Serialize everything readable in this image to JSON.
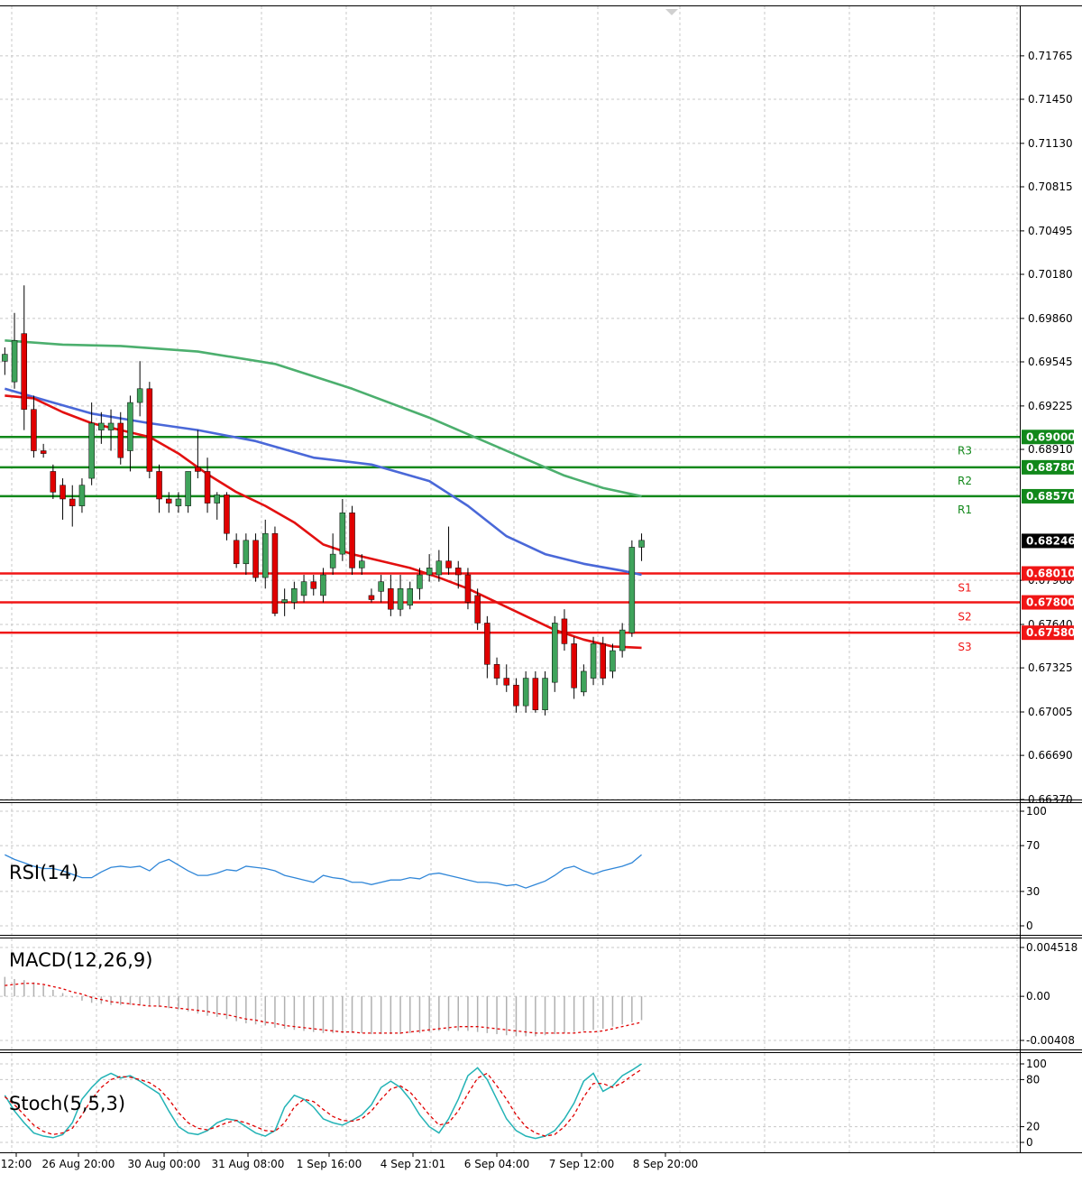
{
  "colors": {
    "bull": "#3fa35b",
    "bear": "#e00000",
    "grid": "#c8c8c8",
    "resistance": "#11881a",
    "support": "#f01515",
    "ma_slow": "#4caf6e",
    "ma_mid": "#4a68d8",
    "ma_fast": "#e31010",
    "rsi": "#2f86d8",
    "macd_hist": "#b0b0b0",
    "macd_signal": "#e00000",
    "stoch_main": "#23b3b6",
    "stoch_signal": "#e00000",
    "price_tag_bg": "#000000"
  },
  "chart_data": {
    "type": "candlestick",
    "price_axis": {
      "ticks": [
        "0.71765",
        "0.71450",
        "0.71130",
        "0.70815",
        "0.70495",
        "0.70180",
        "0.69860",
        "0.69545",
        "0.69225",
        "0.68910",
        "0.67960",
        "0.67640",
        "0.67325",
        "0.67005",
        "0.66690",
        "0.66370"
      ],
      "ylim": [
        0.6637,
        0.72085
      ]
    },
    "time_axis": {
      "labels": [
        "12:00",
        "26 Aug 20:00",
        "30 Aug 00:00",
        "31 Aug 08:00",
        "1 Sep 16:00",
        "4 Sep 21:01",
        "6 Sep 04:00",
        "7 Sep 12:00",
        "8 Sep 20:00"
      ]
    },
    "current_price": "0.68246",
    "levels": [
      {
        "name": "R3",
        "value": 0.69,
        "label": "0.69000",
        "kind": "resistance"
      },
      {
        "name": "R2",
        "value": 0.6878,
        "label": "0.68780",
        "kind": "resistance"
      },
      {
        "name": "R1",
        "value": 0.6857,
        "label": "0.68570",
        "kind": "resistance"
      },
      {
        "name": "S1",
        "value": 0.6801,
        "label": "0.68010",
        "kind": "support"
      },
      {
        "name": "S2",
        "value": 0.678,
        "label": "0.67800",
        "kind": "support"
      },
      {
        "name": "S3",
        "value": 0.6758,
        "label": "0.67580",
        "kind": "support"
      }
    ],
    "candles": [
      [
        0.6955,
        0.6965,
        0.6945,
        0.696
      ],
      [
        0.694,
        0.699,
        0.6935,
        0.697
      ],
      [
        0.6975,
        0.701,
        0.6905,
        0.692
      ],
      [
        0.692,
        0.693,
        0.6885,
        0.689
      ],
      [
        0.689,
        0.6895,
        0.6885,
        0.6888
      ],
      [
        0.6875,
        0.688,
        0.6855,
        0.686
      ],
      [
        0.6865,
        0.687,
        0.684,
        0.6855
      ],
      [
        0.6855,
        0.6865,
        0.6835,
        0.685
      ],
      [
        0.685,
        0.687,
        0.6845,
        0.6865
      ],
      [
        0.687,
        0.6925,
        0.6865,
        0.691
      ],
      [
        0.6905,
        0.6918,
        0.6895,
        0.691
      ],
      [
        0.6905,
        0.692,
        0.689,
        0.691
      ],
      [
        0.691,
        0.6918,
        0.688,
        0.6885
      ],
      [
        0.689,
        0.693,
        0.6875,
        0.6925
      ],
      [
        0.6925,
        0.6955,
        0.6915,
        0.6935
      ],
      [
        0.6935,
        0.694,
        0.687,
        0.6875
      ],
      [
        0.6875,
        0.688,
        0.6845,
        0.6855
      ],
      [
        0.6855,
        0.686,
        0.6845,
        0.6852
      ],
      [
        0.685,
        0.686,
        0.6845,
        0.6855
      ],
      [
        0.685,
        0.6875,
        0.6845,
        0.6875
      ],
      [
        0.6878,
        0.6905,
        0.687,
        0.6875
      ],
      [
        0.6875,
        0.6885,
        0.6845,
        0.6852
      ],
      [
        0.6852,
        0.686,
        0.684,
        0.6858
      ],
      [
        0.6858,
        0.686,
        0.6825,
        0.683
      ],
      [
        0.6825,
        0.683,
        0.6805,
        0.6808
      ],
      [
        0.6808,
        0.683,
        0.68,
        0.6825
      ],
      [
        0.6825,
        0.683,
        0.6795,
        0.6798
      ],
      [
        0.6798,
        0.684,
        0.679,
        0.683
      ],
      [
        0.683,
        0.6835,
        0.677,
        0.6772
      ],
      [
        0.678,
        0.679,
        0.677,
        0.6782
      ],
      [
        0.678,
        0.6795,
        0.6775,
        0.679
      ],
      [
        0.6785,
        0.68,
        0.678,
        0.6795
      ],
      [
        0.6795,
        0.68,
        0.6785,
        0.679
      ],
      [
        0.6785,
        0.6805,
        0.678,
        0.68
      ],
      [
        0.6805,
        0.683,
        0.68,
        0.6815
      ],
      [
        0.6815,
        0.6855,
        0.681,
        0.6845
      ],
      [
        0.6845,
        0.685,
        0.68,
        0.6805
      ],
      [
        0.6805,
        0.6815,
        0.68,
        0.681
      ],
      [
        0.6785,
        0.679,
        0.678,
        0.6782
      ],
      [
        0.6788,
        0.68,
        0.678,
        0.6795
      ],
      [
        0.679,
        0.68,
        0.677,
        0.6775
      ],
      [
        0.6775,
        0.68,
        0.677,
        0.679
      ],
      [
        0.6778,
        0.6795,
        0.6775,
        0.679
      ],
      [
        0.679,
        0.6805,
        0.6782,
        0.68
      ],
      [
        0.68,
        0.6815,
        0.6795,
        0.6805
      ],
      [
        0.68,
        0.6818,
        0.6795,
        0.681
      ],
      [
        0.681,
        0.6835,
        0.68,
        0.6805
      ],
      [
        0.6805,
        0.681,
        0.679,
        0.68
      ],
      [
        0.68,
        0.6805,
        0.6775,
        0.678
      ],
      [
        0.6785,
        0.679,
        0.676,
        0.6765
      ],
      [
        0.6765,
        0.677,
        0.6725,
        0.6735
      ],
      [
        0.6735,
        0.674,
        0.672,
        0.6725
      ],
      [
        0.6725,
        0.6735,
        0.6715,
        0.672
      ],
      [
        0.672,
        0.6725,
        0.67,
        0.6705
      ],
      [
        0.6705,
        0.673,
        0.67,
        0.6725
      ],
      [
        0.6725,
        0.673,
        0.67,
        0.6702
      ],
      [
        0.6702,
        0.673,
        0.6698,
        0.6725
      ],
      [
        0.6722,
        0.677,
        0.6715,
        0.6765
      ],
      [
        0.6768,
        0.6775,
        0.6745,
        0.675
      ],
      [
        0.675,
        0.6755,
        0.671,
        0.6718
      ],
      [
        0.6715,
        0.6735,
        0.6712,
        0.673
      ],
      [
        0.6725,
        0.6755,
        0.672,
        0.675
      ],
      [
        0.675,
        0.6755,
        0.672,
        0.6725
      ],
      [
        0.673,
        0.675,
        0.6725,
        0.6745
      ],
      [
        0.6745,
        0.6765,
        0.674,
        0.676
      ],
      [
        0.6758,
        0.6825,
        0.6755,
        0.682
      ],
      [
        0.682,
        0.683,
        0.681,
        0.6825
      ]
    ],
    "moving_averages": [
      {
        "key": "ma_slow",
        "values": [
          [
            0,
            0.697
          ],
          [
            6,
            0.6967
          ],
          [
            12,
            0.6966
          ],
          [
            20,
            0.6962
          ],
          [
            28,
            0.6953
          ],
          [
            36,
            0.6935
          ],
          [
            44,
            0.6914
          ],
          [
            52,
            0.689
          ],
          [
            58,
            0.6872
          ],
          [
            62,
            0.6863
          ],
          [
            66,
            0.6857
          ]
        ]
      },
      {
        "key": "ma_mid",
        "values": [
          [
            0,
            0.6935
          ],
          [
            5,
            0.6925
          ],
          [
            9,
            0.6917
          ],
          [
            15,
            0.691
          ],
          [
            20,
            0.6905
          ],
          [
            26,
            0.6897
          ],
          [
            32,
            0.6885
          ],
          [
            38,
            0.688
          ],
          [
            44,
            0.6868
          ],
          [
            48,
            0.685
          ],
          [
            52,
            0.6828
          ],
          [
            56,
            0.6815
          ],
          [
            60,
            0.6808
          ],
          [
            64,
            0.6803
          ],
          [
            66,
            0.68
          ]
        ]
      },
      {
        "key": "ma_fast",
        "values": [
          [
            0,
            0.693
          ],
          [
            3,
            0.6928
          ],
          [
            6,
            0.6918
          ],
          [
            9,
            0.691
          ],
          [
            12,
            0.6905
          ],
          [
            15,
            0.69
          ],
          [
            18,
            0.6888
          ],
          [
            21,
            0.6873
          ],
          [
            24,
            0.686
          ],
          [
            27,
            0.685
          ],
          [
            30,
            0.6838
          ],
          [
            33,
            0.6822
          ],
          [
            36,
            0.6815
          ],
          [
            39,
            0.681
          ],
          [
            42,
            0.6805
          ],
          [
            45,
            0.6798
          ],
          [
            48,
            0.679
          ],
          [
            51,
            0.678
          ],
          [
            54,
            0.677
          ],
          [
            57,
            0.676
          ],
          [
            60,
            0.6753
          ],
          [
            63,
            0.6748
          ],
          [
            66,
            0.6747
          ]
        ]
      }
    ],
    "rsi": {
      "title": "RSI(14)",
      "ticks": [
        "100",
        "70",
        "30",
        "0"
      ],
      "tick_values": [
        100,
        70,
        30,
        0
      ],
      "values": [
        62,
        58,
        55,
        52,
        50,
        50,
        48,
        45,
        42,
        42,
        47,
        51,
        52,
        51,
        52,
        48,
        55,
        58,
        53,
        48,
        44,
        44,
        46,
        49,
        48,
        52,
        51,
        50,
        48,
        44,
        42,
        40,
        38,
        44,
        42,
        41,
        38,
        38,
        36,
        38,
        40,
        40,
        42,
        41,
        45,
        46,
        44,
        42,
        40,
        38,
        38,
        37,
        35,
        36,
        33,
        36,
        39,
        44,
        50,
        52,
        48,
        45,
        48,
        50,
        52,
        55,
        62
      ]
    },
    "macd": {
      "title": "MACD(12,26,9)",
      "ticks": [
        "0.004518",
        "0.00",
        "-0.00408"
      ],
      "tick_values": [
        0.004518,
        0.0,
        -0.00408
      ],
      "hist": [
        0.0018,
        0.0016,
        0.0015,
        0.0013,
        0.001,
        0.0006,
        0.0003,
        -0.0001,
        -0.0004,
        -0.0006,
        -0.0007,
        -0.0008,
        -0.0008,
        -0.0008,
        -0.0008,
        -0.0009,
        -0.001,
        -0.0011,
        -0.0012,
        -0.0014,
        -0.0016,
        -0.0018,
        -0.0019,
        -0.0021,
        -0.0023,
        -0.0025,
        -0.0026,
        -0.0027,
        -0.0029,
        -0.003,
        -0.0031,
        -0.0032,
        -0.0033,
        -0.0034,
        -0.0034,
        -0.0034,
        -0.0034,
        -0.0034,
        -0.0035,
        -0.0035,
        -0.0035,
        -0.0035,
        -0.0034,
        -0.0034,
        -0.0033,
        -0.0032,
        -0.0032,
        -0.0032,
        -0.0032,
        -0.0033,
        -0.0034,
        -0.0035,
        -0.0036,
        -0.0037,
        -0.0037,
        -0.0037,
        -0.0036,
        -0.0035,
        -0.0034,
        -0.0033,
        -0.0032,
        -0.0031,
        -0.003,
        -0.0028,
        -0.0026,
        -0.0024,
        -0.0022
      ],
      "signal": [
        0.001,
        0.0011,
        0.0012,
        0.0012,
        0.0011,
        0.0009,
        0.0007,
        0.0004,
        0.0002,
        -0.0001,
        -0.0003,
        -0.0005,
        -0.0006,
        -0.0007,
        -0.0008,
        -0.0009,
        -0.0009,
        -0.001,
        -0.0011,
        -0.0012,
        -0.0013,
        -0.0014,
        -0.0016,
        -0.0017,
        -0.0019,
        -0.0021,
        -0.0022,
        -0.0024,
        -0.0025,
        -0.0027,
        -0.0028,
        -0.0029,
        -0.003,
        -0.0031,
        -0.0032,
        -0.0033,
        -0.0033,
        -0.0034,
        -0.0034,
        -0.0034,
        -0.0034,
        -0.0034,
        -0.0033,
        -0.0032,
        -0.0031,
        -0.003,
        -0.0029,
        -0.0028,
        -0.0028,
        -0.0028,
        -0.0029,
        -0.003,
        -0.0031,
        -0.0032,
        -0.0033,
        -0.0034,
        -0.0034,
        -0.0034,
        -0.0034,
        -0.0034,
        -0.0033,
        -0.0033,
        -0.0032,
        -0.003,
        -0.0028,
        -0.0026,
        -0.0024
      ]
    },
    "stoch": {
      "title": "Stoch(5,5,3)",
      "ticks": [
        "100",
        "80",
        "20",
        "0"
      ],
      "tick_values": [
        100,
        80,
        20,
        0
      ],
      "main": [
        60,
        40,
        25,
        12,
        8,
        6,
        10,
        25,
        55,
        70,
        82,
        88,
        82,
        85,
        78,
        70,
        62,
        40,
        20,
        12,
        10,
        15,
        25,
        30,
        28,
        20,
        12,
        8,
        15,
        45,
        60,
        55,
        45,
        30,
        25,
        22,
        28,
        35,
        48,
        70,
        78,
        70,
        55,
        35,
        20,
        12,
        30,
        55,
        85,
        95,
        80,
        55,
        30,
        15,
        8,
        5,
        8,
        15,
        30,
        50,
        78,
        88,
        65,
        72,
        85,
        92,
        100
      ],
      "signal": [
        58,
        48,
        35,
        22,
        14,
        10,
        12,
        18,
        35,
        55,
        70,
        80,
        84,
        83,
        80,
        76,
        68,
        55,
        38,
        25,
        18,
        16,
        20,
        25,
        28,
        25,
        20,
        15,
        14,
        25,
        45,
        55,
        52,
        42,
        33,
        28,
        27,
        30,
        40,
        55,
        68,
        72,
        64,
        50,
        35,
        22,
        25,
        40,
        62,
        82,
        88,
        72,
        55,
        35,
        20,
        12,
        8,
        10,
        20,
        35,
        58,
        75,
        75,
        70,
        76,
        85,
        93
      ]
    }
  }
}
